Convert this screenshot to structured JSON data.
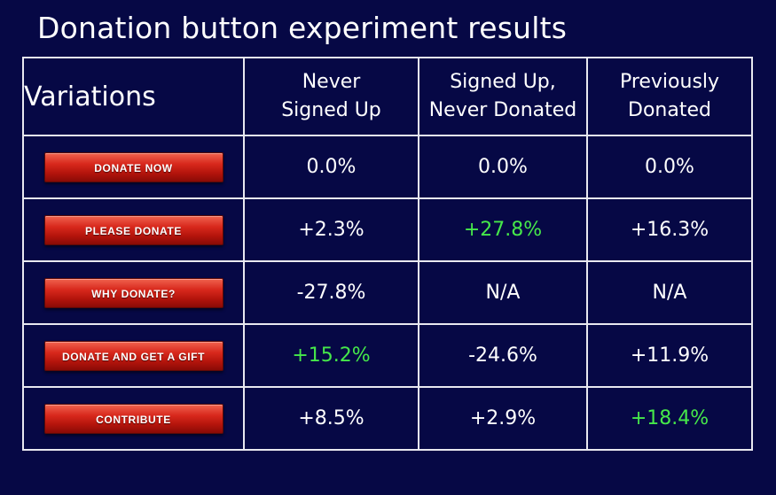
{
  "title": "Donation button experiment results",
  "table": {
    "variations_header": "Variations",
    "columns": [
      {
        "line1": "Never",
        "line2": "Signed Up"
      },
      {
        "line1": "Signed Up,",
        "line2": "Never Donated"
      },
      {
        "line1": "Previously",
        "line2": "Donated"
      }
    ],
    "rows": [
      {
        "button": "DONATE NOW",
        "values": [
          "0.0%",
          "0.0%",
          "0.0%"
        ]
      },
      {
        "button": "PLEASE DONATE",
        "values": [
          "+2.3%",
          "+27.8%",
          "+16.3%"
        ]
      },
      {
        "button": "WHY DONATE?",
        "values": [
          "-27.8%",
          "N/A",
          "N/A"
        ]
      },
      {
        "button": "DONATE AND GET A GIFT",
        "values": [
          "+15.2%",
          "-24.6%",
          "+11.9%"
        ]
      },
      {
        "button": "CONTRIBUTE",
        "values": [
          "+8.5%",
          "+2.9%",
          "+18.4%"
        ]
      }
    ]
  },
  "colors": {
    "background": "#060845",
    "highlight": "#46e84a",
    "button_red": "#c81c12",
    "grid": "#e8e8f0"
  }
}
